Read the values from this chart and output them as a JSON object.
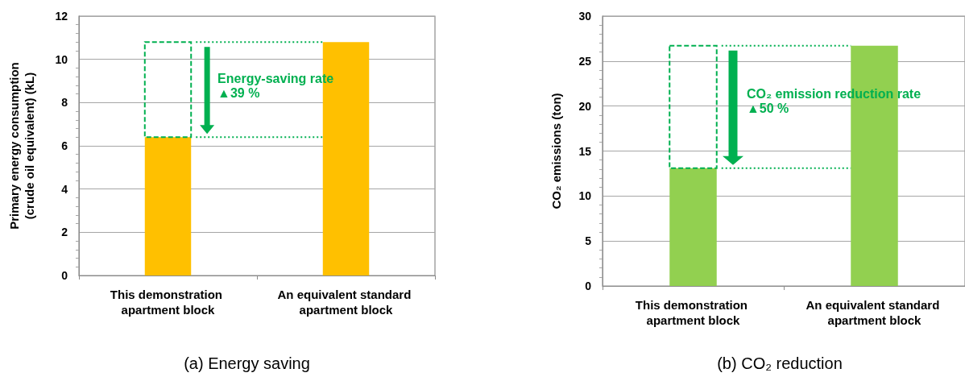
{
  "chart_data": [
    {
      "type": "bar",
      "title": "(a) Energy saving",
      "ylabel": "Primary energy consumption\n(crude oil equivalent) (kL)",
      "categories": [
        "This demonstration apartment block",
        "An equivalent standard apartment block"
      ],
      "values": [
        6.4,
        10.8
      ],
      "color": "#ffc000",
      "ylim": [
        0,
        12
      ],
      "yticks": [
        0,
        2,
        4,
        6,
        8,
        10,
        12
      ],
      "grid": "y",
      "ref_lines": [
        {
          "axis": "y",
          "value": 10.8,
          "color": "#00b050",
          "line_style": "dotted"
        },
        {
          "axis": "y",
          "value": 6.4,
          "color": "#00b050",
          "line_style": "dotted"
        }
      ],
      "annotations": [
        "Energy-saving rate\n▲39 %"
      ]
    },
    {
      "type": "bar",
      "title": "(b) CO₂ reduction",
      "ylabel": "CO₂ emissions (ton)",
      "categories": [
        "This demonstration apartment block",
        "An equivalent standard apartment block"
      ],
      "values": [
        13.1,
        26.7
      ],
      "color": "#92d050",
      "ylim": [
        0,
        30
      ],
      "yticks": [
        0,
        5,
        10,
        15,
        20,
        25,
        30
      ],
      "grid": "y",
      "ref_lines": [
        {
          "axis": "y",
          "value": 26.7,
          "color": "#00b050",
          "line_style": "dotted"
        },
        {
          "axis": "y",
          "value": 13.1,
          "color": "#00b050",
          "line_style": "dotted"
        }
      ],
      "annotations": [
        "CO₂ emission reduction rate\n▲50 %"
      ]
    }
  ]
}
